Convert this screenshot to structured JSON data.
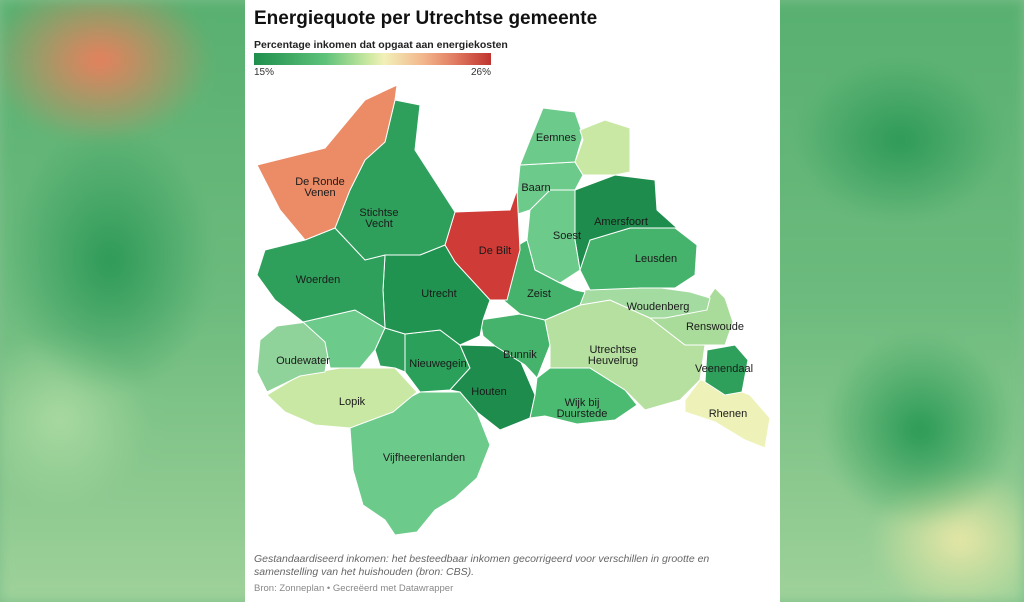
{
  "title": "Energiequote per Utrechtse gemeente",
  "legend": {
    "label": "Percentage inkomen dat opgaat aan energiekosten",
    "min": "15%",
    "max": "26%"
  },
  "colors": {
    "darkgreen": "#1e8c4c",
    "green": "#2ea05c",
    "midgreen": "#45b36c",
    "lightgreen": "#6ccb8b",
    "palegreen": "#a9dc9a",
    "yellowgreen": "#d4ebaa",
    "paleyellow": "#eef2b8",
    "orange": "#ec8c66",
    "red": "#cf3b37"
  },
  "municipalities": [
    {
      "name": "De Ronde",
      "name2": "Venen"
    },
    {
      "name": "Stichtse",
      "name2": "Vecht"
    },
    {
      "name": "Woerden"
    },
    {
      "name": "Utrecht"
    },
    {
      "name": "De Bilt"
    },
    {
      "name": "Eemnes"
    },
    {
      "name": "Baarn"
    },
    {
      "name": "Amersfoort"
    },
    {
      "name": "Soest"
    },
    {
      "name": "Leusden"
    },
    {
      "name": "Zeist"
    },
    {
      "name": "Woudenberg"
    },
    {
      "name": "Renswoude"
    },
    {
      "name": "Oudewater"
    },
    {
      "name": "Nieuwegein"
    },
    {
      "name": "Bunnik"
    },
    {
      "name": "Utrechtse",
      "name2": "Heuvelrug"
    },
    {
      "name": "Veenendaal"
    },
    {
      "name": "Houten"
    },
    {
      "name": "Lopik"
    },
    {
      "name": "Wijk bij",
      "name2": "Duurstede"
    },
    {
      "name": "Rhenen"
    },
    {
      "name": "Vijfheerenlanden"
    }
  ],
  "note": "Gestandaardiseerd inkomen: het besteedbaar inkomen gecorrigeerd voor verschillen in grootte en samenstelling van het huishouden (bron: CBS).",
  "source": "Bron: Zonneplan • Gecreëerd met Datawrapper"
}
